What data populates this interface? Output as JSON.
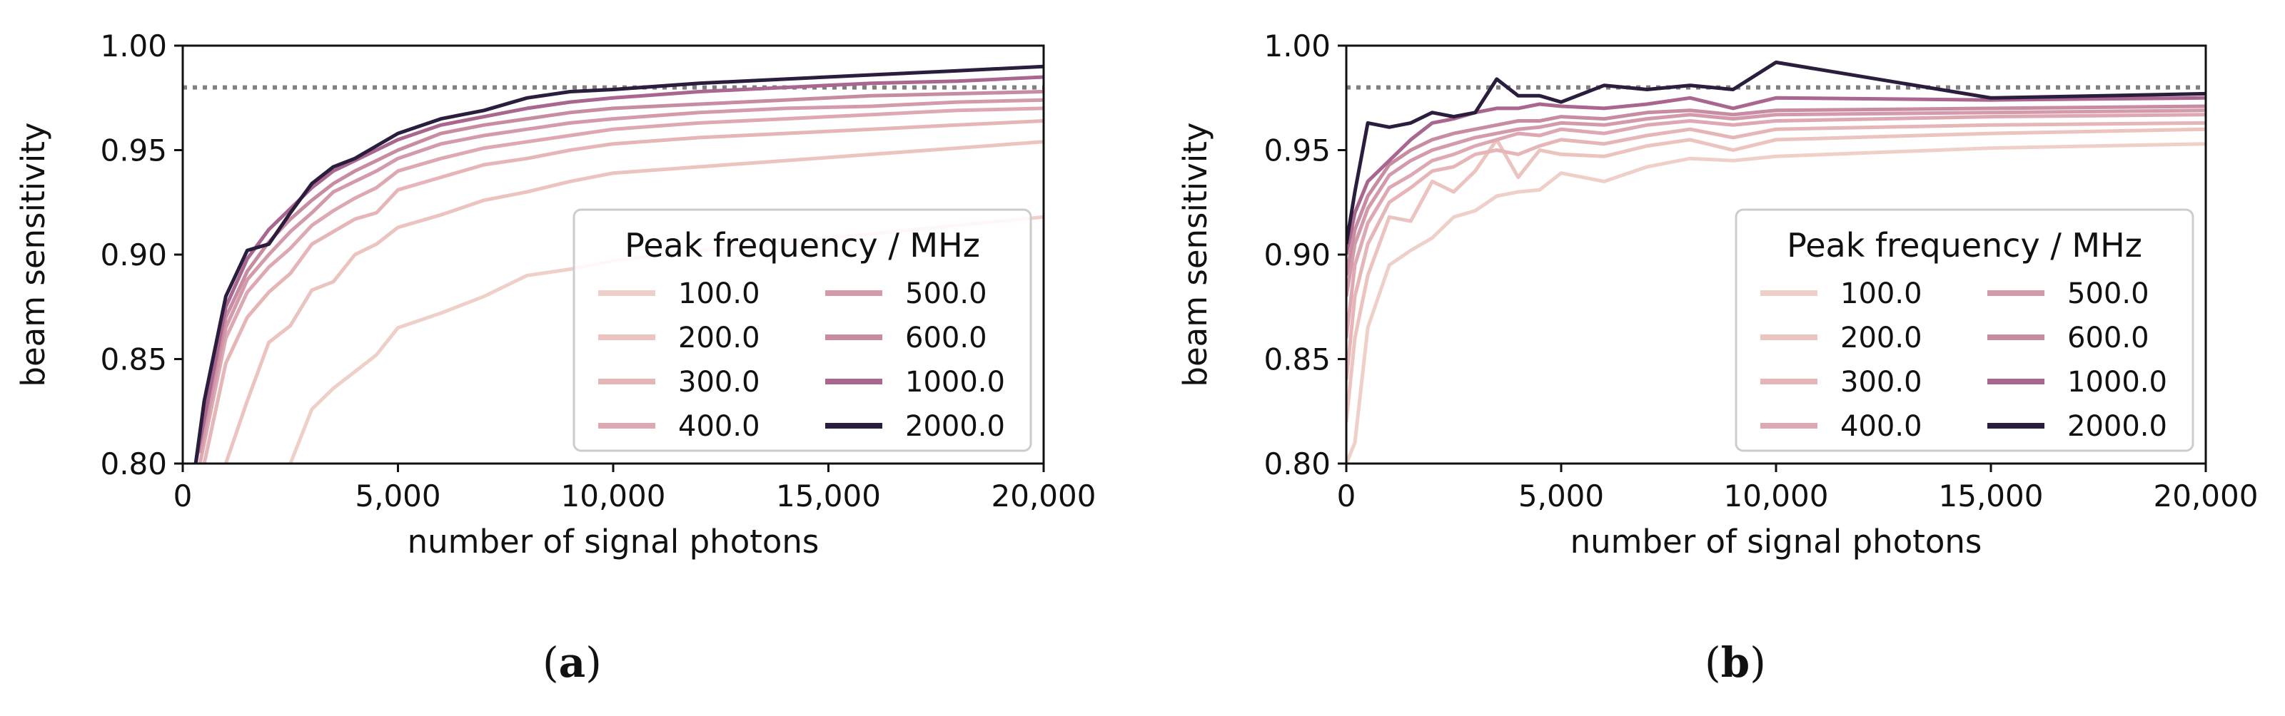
{
  "panels": [
    {
      "caption_letter": "a",
      "chart_data": {
        "type": "line",
        "xlabel": "number of signal photons",
        "ylabel": "beam sensitivity",
        "xlim": [
          0,
          20000
        ],
        "ylim": [
          0.8,
          1.0
        ],
        "x_ticks": [
          0,
          5000,
          10000,
          15000,
          20000
        ],
        "x_tick_labels": [
          "0",
          "5,000",
          "10,000",
          "15,000",
          "20,000"
        ],
        "y_ticks": [
          0.8,
          0.85,
          0.9,
          0.95,
          1.0
        ],
        "y_tick_labels": [
          "0.80",
          "0.85",
          "0.90",
          "0.95",
          "1.00"
        ],
        "reference_line": {
          "y": 0.98,
          "style": "dotted",
          "color": "#808080"
        },
        "legend_title": "Peak frequency / MHz",
        "legend_position": "lower-right",
        "series": [
          {
            "name": "100.0",
            "color": "#efd0c9",
            "x": [
              2500,
              3000,
              3500,
              4000,
              4500,
              5000,
              6000,
              7000,
              8000,
              9000,
              10000,
              12000,
              14000,
              16000,
              18000,
              20000
            ],
            "y": [
              0.8,
              0.826,
              0.836,
              0.844,
              0.852,
              0.865,
              0.872,
              0.88,
              0.89,
              0.893,
              0.897,
              0.902,
              0.906,
              0.91,
              0.914,
              0.918
            ]
          },
          {
            "name": "200.0",
            "color": "#ebc3bf",
            "x": [
              1000,
              1500,
              2000,
              2500,
              3000,
              3500,
              4000,
              4500,
              5000,
              6000,
              7000,
              8000,
              9000,
              10000,
              12000,
              14000,
              16000,
              18000,
              20000
            ],
            "y": [
              0.8,
              0.83,
              0.858,
              0.866,
              0.883,
              0.887,
              0.9,
              0.905,
              0.913,
              0.919,
              0.926,
              0.93,
              0.935,
              0.939,
              0.942,
              0.945,
              0.948,
              0.951,
              0.954
            ]
          },
          {
            "name": "300.0",
            "color": "#e5b5b7",
            "x": [
              500,
              1000,
              1500,
              2000,
              2500,
              3000,
              3500,
              4000,
              4500,
              5000,
              6000,
              7000,
              8000,
              9000,
              10000,
              12000,
              14000,
              16000,
              18000,
              20000
            ],
            "y": [
              0.8,
              0.848,
              0.87,
              0.882,
              0.891,
              0.905,
              0.911,
              0.917,
              0.92,
              0.931,
              0.937,
              0.943,
              0.946,
              0.95,
              0.953,
              0.956,
              0.958,
              0.96,
              0.962,
              0.964
            ]
          },
          {
            "name": "400.0",
            "color": "#dda8b1",
            "x": [
              400,
              1000,
              1500,
              2000,
              2500,
              3000,
              3500,
              4000,
              4500,
              5000,
              6000,
              7000,
              8000,
              9000,
              10000,
              12000,
              14000,
              16000,
              18000,
              20000
            ],
            "y": [
              0.8,
              0.86,
              0.882,
              0.894,
              0.903,
              0.914,
              0.921,
              0.927,
              0.932,
              0.94,
              0.946,
              0.951,
              0.954,
              0.957,
              0.96,
              0.963,
              0.965,
              0.967,
              0.969,
              0.97
            ]
          },
          {
            "name": "500.0",
            "color": "#d39aaa",
            "x": [
              400,
              1000,
              1500,
              2000,
              2500,
              3000,
              3500,
              4000,
              4500,
              5000,
              6000,
              7000,
              8000,
              9000,
              10000,
              12000,
              14000,
              16000,
              18000,
              20000
            ],
            "y": [
              0.805,
              0.865,
              0.888,
              0.9,
              0.911,
              0.92,
              0.93,
              0.935,
              0.94,
              0.946,
              0.953,
              0.957,
              0.96,
              0.963,
              0.965,
              0.968,
              0.97,
              0.971,
              0.973,
              0.974
            ]
          },
          {
            "name": "600.0",
            "color": "#c88ca2",
            "x": [
              400,
              1000,
              1500,
              2000,
              2500,
              3000,
              3500,
              4000,
              4500,
              5000,
              6000,
              7000,
              8000,
              9000,
              10000,
              12000,
              14000,
              16000,
              18000,
              20000
            ],
            "y": [
              0.81,
              0.87,
              0.892,
              0.906,
              0.917,
              0.926,
              0.934,
              0.94,
              0.945,
              0.95,
              0.958,
              0.962,
              0.965,
              0.968,
              0.97,
              0.972,
              0.974,
              0.976,
              0.977,
              0.978
            ]
          },
          {
            "name": "1000.0",
            "color": "#a9668e",
            "x": [
              300,
              1000,
              1500,
              2000,
              2500,
              3000,
              3500,
              4000,
              4500,
              5000,
              6000,
              7000,
              8000,
              9000,
              10000,
              12000,
              14000,
              16000,
              18000,
              20000
            ],
            "y": [
              0.8,
              0.875,
              0.898,
              0.912,
              0.922,
              0.932,
              0.94,
              0.945,
              0.95,
              0.955,
              0.962,
              0.966,
              0.97,
              0.973,
              0.975,
              0.978,
              0.98,
              0.982,
              0.983,
              0.985
            ]
          },
          {
            "name": "2000.0",
            "color": "#2b1d3d",
            "x": [
              300,
              500,
              1000,
              1500,
              2000,
              2500,
              3000,
              3500,
              4000,
              4500,
              5000,
              6000,
              7000,
              8000,
              9000,
              10000,
              12000,
              14000,
              16000,
              18000,
              20000
            ],
            "y": [
              0.8,
              0.83,
              0.88,
              0.902,
              0.905,
              0.92,
              0.934,
              0.942,
              0.946,
              0.952,
              0.958,
              0.965,
              0.969,
              0.975,
              0.978,
              0.979,
              0.982,
              0.984,
              0.986,
              0.988,
              0.99
            ]
          }
        ]
      }
    },
    {
      "caption_letter": "b",
      "chart_data": {
        "type": "line",
        "xlabel": "number of signal photons",
        "ylabel": "beam sensitivity",
        "xlim": [
          0,
          20000
        ],
        "ylim": [
          0.8,
          1.0
        ],
        "x_ticks": [
          0,
          5000,
          10000,
          15000,
          20000
        ],
        "x_tick_labels": [
          "0",
          "5,000",
          "10,000",
          "15,000",
          "20,000"
        ],
        "y_ticks": [
          0.8,
          0.85,
          0.9,
          0.95,
          1.0
        ],
        "y_tick_labels": [
          "0.80",
          "0.85",
          "0.90",
          "0.95",
          "1.00"
        ],
        "reference_line": {
          "y": 0.98,
          "style": "dotted",
          "color": "#808080"
        },
        "legend_title": "Peak frequency / MHz",
        "legend_position": "lower-right",
        "series": [
          {
            "name": "100.0",
            "color": "#efd0c9",
            "x": [
              0,
              200,
              500,
              1000,
              1500,
              2000,
              2500,
              3000,
              3500,
              4000,
              4500,
              5000,
              6000,
              7000,
              8000,
              9000,
              10000,
              15000,
              20000
            ],
            "y": [
              0.8,
              0.81,
              0.865,
              0.895,
              0.902,
              0.908,
              0.918,
              0.921,
              0.928,
              0.93,
              0.931,
              0.939,
              0.935,
              0.942,
              0.946,
              0.945,
              0.947,
              0.951,
              0.953
            ]
          },
          {
            "name": "200.0",
            "color": "#ebc3bf",
            "x": [
              0,
              200,
              500,
              1000,
              1500,
              2000,
              2500,
              3000,
              3500,
              4000,
              4500,
              5000,
              6000,
              7000,
              8000,
              9000,
              10000,
              15000,
              20000
            ],
            "y": [
              0.82,
              0.86,
              0.89,
              0.918,
              0.916,
              0.935,
              0.93,
              0.94,
              0.955,
              0.937,
              0.95,
              0.948,
              0.947,
              0.952,
              0.955,
              0.95,
              0.955,
              0.958,
              0.96
            ]
          },
          {
            "name": "300.0",
            "color": "#e5b5b7",
            "x": [
              0,
              200,
              500,
              1000,
              1500,
              2000,
              2500,
              3000,
              3500,
              4000,
              4500,
              5000,
              6000,
              7000,
              8000,
              9000,
              10000,
              15000,
              20000
            ],
            "y": [
              0.84,
              0.88,
              0.905,
              0.925,
              0.932,
              0.94,
              0.942,
              0.948,
              0.95,
              0.948,
              0.952,
              0.955,
              0.953,
              0.957,
              0.96,
              0.956,
              0.96,
              0.962,
              0.963
            ]
          },
          {
            "name": "400.0",
            "color": "#dda8b1",
            "x": [
              0,
              200,
              500,
              1000,
              1500,
              2000,
              2500,
              3000,
              3500,
              4000,
              4500,
              5000,
              6000,
              7000,
              8000,
              9000,
              10000,
              15000,
              20000
            ],
            "y": [
              0.86,
              0.895,
              0.915,
              0.932,
              0.938,
              0.945,
              0.948,
              0.952,
              0.955,
              0.958,
              0.957,
              0.96,
              0.958,
              0.962,
              0.964,
              0.962,
              0.964,
              0.966,
              0.967
            ]
          },
          {
            "name": "500.0",
            "color": "#d39aaa",
            "x": [
              0,
              200,
              500,
              1000,
              1500,
              2000,
              2500,
              3000,
              3500,
              4000,
              4500,
              5000,
              6000,
              7000,
              8000,
              9000,
              10000,
              15000,
              20000
            ],
            "y": [
              0.88,
              0.905,
              0.922,
              0.938,
              0.945,
              0.95,
              0.953,
              0.956,
              0.958,
              0.96,
              0.961,
              0.963,
              0.962,
              0.965,
              0.967,
              0.965,
              0.967,
              0.968,
              0.969
            ]
          },
          {
            "name": "600.0",
            "color": "#c88ca2",
            "x": [
              0,
              200,
              500,
              1000,
              1500,
              2000,
              2500,
              3000,
              3500,
              4000,
              4500,
              5000,
              6000,
              7000,
              8000,
              9000,
              10000,
              15000,
              20000
            ],
            "y": [
              0.89,
              0.912,
              0.928,
              0.943,
              0.95,
              0.955,
              0.958,
              0.96,
              0.962,
              0.964,
              0.964,
              0.966,
              0.965,
              0.968,
              0.969,
              0.967,
              0.969,
              0.97,
              0.971
            ]
          },
          {
            "name": "1000.0",
            "color": "#a9668e",
            "x": [
              0,
              200,
              500,
              1000,
              1500,
              2000,
              2500,
              3000,
              3500,
              4000,
              4500,
              5000,
              6000,
              7000,
              8000,
              9000,
              10000,
              15000,
              20000
            ],
            "y": [
              0.9,
              0.92,
              0.935,
              0.945,
              0.955,
              0.963,
              0.965,
              0.968,
              0.97,
              0.97,
              0.972,
              0.971,
              0.97,
              0.972,
              0.975,
              0.97,
              0.975,
              0.974,
              0.975
            ]
          },
          {
            "name": "2000.0",
            "color": "#2b1d3d",
            "x": [
              0,
              200,
              500,
              1000,
              1500,
              2000,
              2500,
              3000,
              3500,
              4000,
              4500,
              5000,
              6000,
              7000,
              8000,
              9000,
              10000,
              15000,
              20000
            ],
            "y": [
              0.905,
              0.93,
              0.963,
              0.961,
              0.963,
              0.968,
              0.966,
              0.968,
              0.984,
              0.976,
              0.976,
              0.973,
              0.981,
              0.979,
              0.981,
              0.979,
              0.992,
              0.975,
              0.977
            ]
          }
        ]
      }
    }
  ]
}
